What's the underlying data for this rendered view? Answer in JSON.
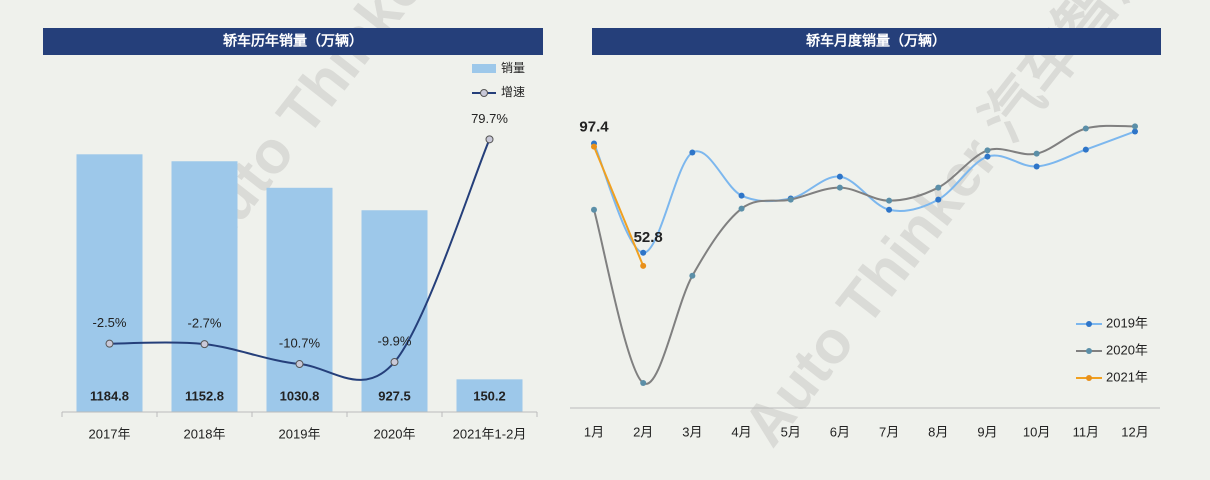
{
  "watermark": "Auto Thinker 汽车智库平台",
  "chart_data": [
    {
      "type": "bar-line",
      "title": "轿车历年销量（万辆）",
      "categories": [
        "2017年",
        "2018年",
        "2019年",
        "2020年",
        "2021年1-2月"
      ],
      "series": [
        {
          "name": "销量",
          "color": "#9dc8ea",
          "values": [
            1184.8,
            1152.8,
            1030.8,
            927.5,
            150.2
          ]
        },
        {
          "name": "增速",
          "color": "#253f7a",
          "axis": "y2",
          "values": [
            -2.5,
            -2.7,
            -10.7,
            -9.9,
            79.7
          ],
          "value_labels": [
            "-2.5%",
            "-2.7%",
            "-10.7%",
            "-9.9%",
            "79.7%"
          ]
        }
      ],
      "ylim": [
        0,
        1600
      ],
      "y2lim": [
        -30,
        110
      ],
      "legend": "top-right"
    },
    {
      "type": "line",
      "title": "轿车月度销量（万辆）",
      "categories": [
        "1月",
        "2月",
        "3月",
        "4月",
        "5月",
        "6月",
        "7月",
        "8月",
        "9月",
        "10月",
        "11月",
        "12月"
      ],
      "series": [
        {
          "name": "2019年",
          "color": "#7cb7ee",
          "marker": "#2e75c8",
          "values": [
            98.6,
            57.7,
            95.2,
            79.1,
            78,
            86.2,
            73.8,
            77.6,
            93.7,
            90,
            96.3,
            103.1
          ]
        },
        {
          "name": "2020年",
          "color": "#808080",
          "marker": "#5b8fa8",
          "values": [
            73.8,
            9,
            49.1,
            74.2,
            77.6,
            82.1,
            77.2,
            82.1,
            96,
            94.8,
            104.2,
            105
          ]
        },
        {
          "name": "2021年",
          "color": "#f0a020",
          "marker": "#e8901a",
          "values": [
            97.4,
            52.8,
            null,
            null,
            null,
            null,
            null,
            null,
            null,
            null,
            null,
            null
          ]
        }
      ],
      "ylim": [
        0,
        110
      ],
      "legend": "bottom-right"
    }
  ]
}
